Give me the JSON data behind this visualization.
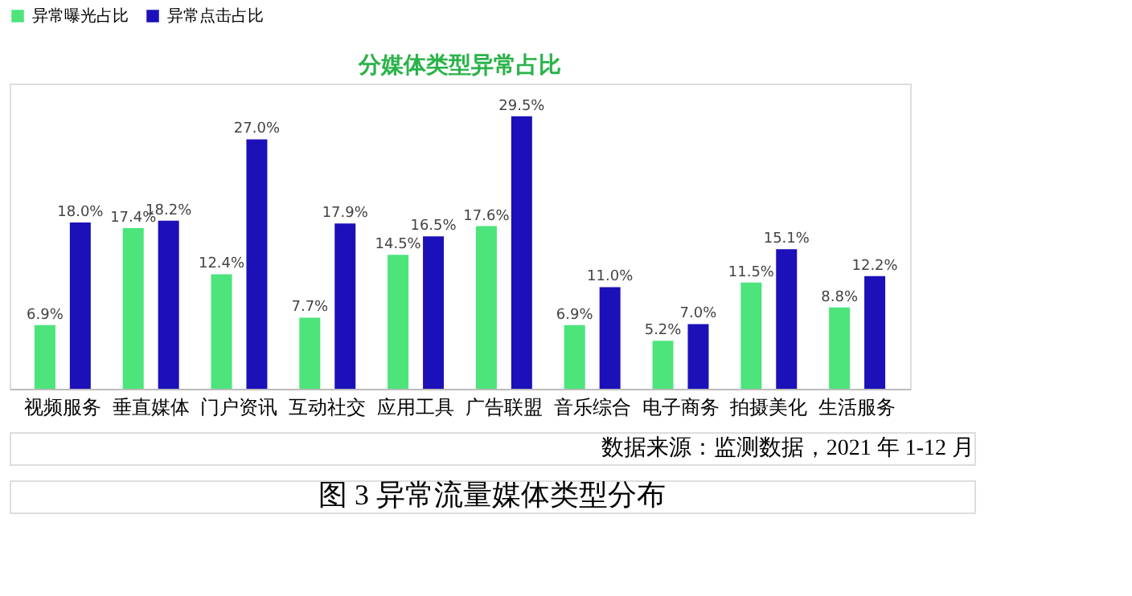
{
  "chart_data": {
    "type": "bar",
    "title": "分媒体类型异常占比",
    "categories": [
      "视频服务",
      "垂直媒体",
      "门户资讯",
      "互动社交",
      "应用工具",
      "广告联盟",
      "音乐综合",
      "电子商务",
      "拍摄美化",
      "生活服务"
    ],
    "series": [
      {
        "name": "异常曝光占比",
        "color": "#4ce47b",
        "values": [
          6.9,
          17.4,
          12.4,
          7.7,
          14.5,
          17.6,
          6.9,
          5.2,
          11.5,
          8.8
        ],
        "value_labels": [
          "6.9%",
          "17.4%",
          "12.4%",
          "7.7%",
          "14.5%",
          "17.6%",
          "6.9%",
          "5.2%",
          "11.5%",
          "8.8%"
        ]
      },
      {
        "name": "异常点击占比",
        "color": "#1c10b8",
        "values": [
          18.0,
          18.2,
          27.0,
          17.9,
          16.5,
          29.5,
          11.0,
          7.0,
          15.1,
          12.2
        ],
        "value_labels": [
          "18.0%",
          "18.2%",
          "27.0%",
          "17.9%",
          "16.5%",
          "29.5%",
          "11.0%",
          "7.0%",
          "15.1%",
          "12.2%"
        ]
      }
    ],
    "legend": "top",
    "grid": false,
    "annotations": [
      "数据来源：监测数据，2021 年 1-12 月",
      "图 3 异常流量媒体类型分布"
    ]
  }
}
